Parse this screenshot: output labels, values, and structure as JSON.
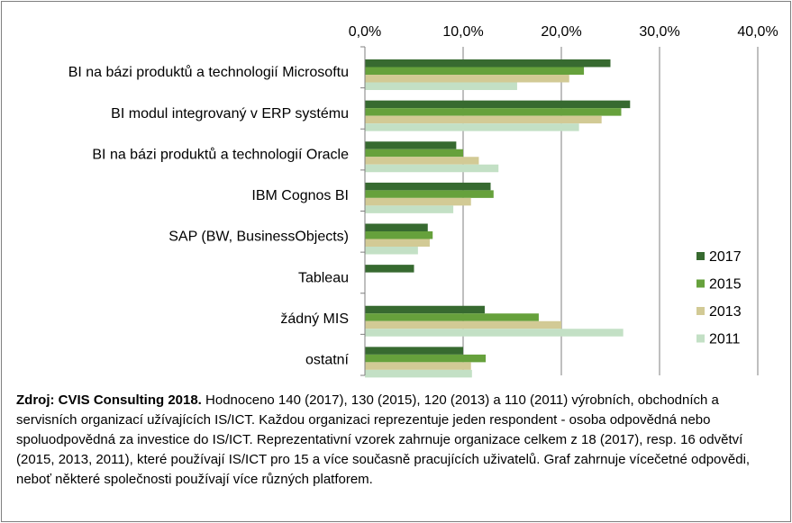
{
  "chart_data": {
    "type": "bar",
    "orientation": "horizontal",
    "categories": [
      "BI na bázi produktů a technologií Microsoftu",
      "BI modul integrovaný v ERP systému",
      "BI na bázi produktů a technologií Oracle",
      "IBM Cognos BI",
      "SAP (BW, BusinessObjects)",
      "Tableau",
      "žádný MIS",
      "ostatní"
    ],
    "series": [
      {
        "name": "2017",
        "color": "#376a30",
        "values": [
          25.0,
          27.0,
          9.3,
          12.8,
          6.4,
          5.0,
          12.2,
          10.0
        ]
      },
      {
        "name": "2015",
        "color": "#66a13c",
        "values": [
          22.3,
          26.1,
          10.0,
          13.1,
          6.9,
          null,
          17.7,
          12.3
        ]
      },
      {
        "name": "2013",
        "color": "#d2ca95",
        "values": [
          20.8,
          24.1,
          11.6,
          10.8,
          6.6,
          null,
          20.0,
          10.8
        ]
      },
      {
        "name": "2011",
        "color": "#c3e0c5",
        "values": [
          15.5,
          21.8,
          13.6,
          9.0,
          5.4,
          null,
          26.3,
          10.9
        ]
      }
    ],
    "xlim": [
      0,
      40
    ],
    "xticks": [
      "0,0%",
      "10,0%",
      "20,0%",
      "30,0%",
      "40,0%"
    ],
    "x_axis_position": "top",
    "grid": true,
    "legend_position": "right"
  },
  "source": {
    "bold_prefix": "Zdroj: CVIS Consulting 2018.",
    "text": " Hodnoceno 140 (2017), 130 (2015), 120 (2013) a 110 (2011) výrobních, obchodních a servisních organizací užívajících IS/ICT. Každou organizaci reprezentuje jeden respondent - osoba odpovědná nebo spoluodpovědná za investice do IS/ICT.  Reprezentativní  vzorek zahrnuje organizace celkem z 18 (2017), resp. 16 odvětví  (2015, 2013, 2011), které používají IS/ICT pro 15 a více současně pracujících uživatelů.  Graf zahrnuje vícečetné odpovědi, neboť některé společnosti používají více různých platforem."
  }
}
